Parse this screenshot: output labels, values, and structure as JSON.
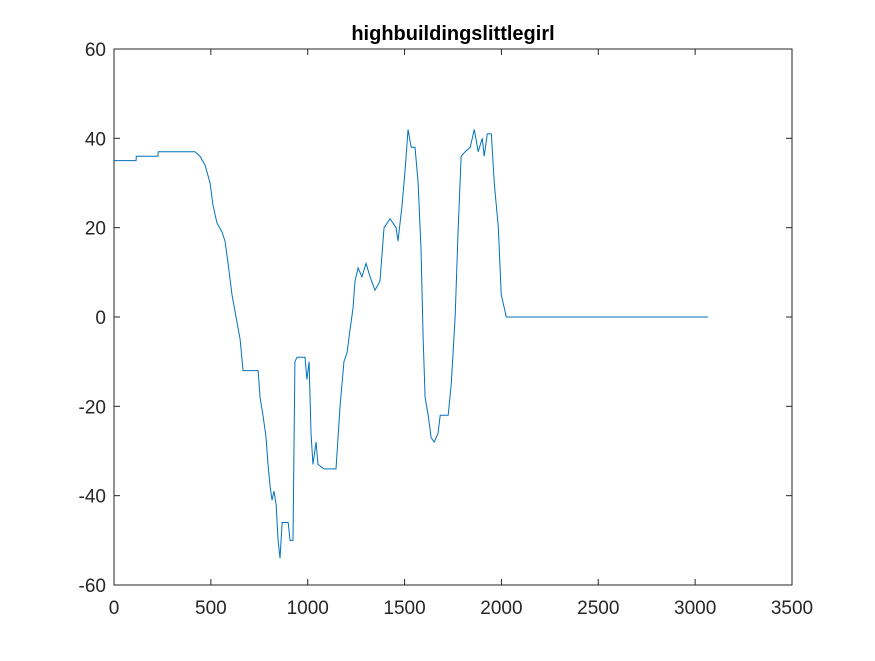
{
  "chart_data": {
    "type": "line",
    "title": "highbuildingslittlegirl",
    "x": [
      0,
      114,
      115,
      227,
      228,
      418,
      444,
      470,
      496,
      511,
      532,
      558,
      573,
      589,
      609,
      630,
      651,
      666,
      744,
      754,
      769,
      785,
      795,
      806,
      816,
      826,
      837,
      847,
      857,
      868,
      899,
      909,
      924,
      934,
      945,
      986,
      996,
      1007,
      1017,
      1027,
      1043,
      1053,
      1084,
      1146,
      1167,
      1187,
      1203,
      1218,
      1234,
      1244,
      1260,
      1280,
      1301,
      1322,
      1347,
      1373,
      1394,
      1425,
      1456,
      1466,
      1487,
      1503,
      1518,
      1534,
      1554,
      1570,
      1585,
      1596,
      1606,
      1622,
      1637,
      1653,
      1673,
      1684,
      1725,
      1741,
      1761,
      1777,
      1792,
      1813,
      1839,
      1860,
      1880,
      1901,
      1911,
      1927,
      1948,
      1963,
      1984,
      1999,
      2015,
      2025,
      3067
    ],
    "series": [
      {
        "color": "#0072bd",
        "values": [
          35,
          35,
          36,
          36,
          37,
          37,
          36,
          34,
          30,
          25,
          21,
          19,
          17,
          12,
          5,
          0,
          -5,
          -12,
          -12,
          -18,
          -22,
          -27,
          -33,
          -38,
          -41,
          -39,
          -42,
          -50,
          -54,
          -46,
          -46,
          -50,
          -50,
          -10,
          -9,
          -9,
          -14,
          -10,
          -26,
          -33,
          -28,
          -33,
          -34,
          -34,
          -20,
          -10,
          -8,
          -3,
          2,
          8,
          11,
          9,
          12,
          9,
          6,
          8,
          20,
          22,
          20,
          17,
          25,
          33,
          42,
          38,
          38,
          30,
          15,
          -5,
          -18,
          -22,
          -27,
          -28,
          -26,
          -22,
          -22,
          -15,
          0,
          20,
          36,
          37,
          38,
          42,
          37,
          40,
          36,
          41,
          41,
          30,
          20,
          5,
          2,
          0,
          0
        ]
      }
    ],
    "xlim": [
      0,
      3500
    ],
    "xticks": [
      0,
      500,
      1000,
      1500,
      2000,
      2500,
      3000,
      3500
    ],
    "ylim": [
      -60,
      60
    ],
    "yticks": [
      -60,
      -40,
      -20,
      0,
      20,
      40,
      60
    ]
  }
}
